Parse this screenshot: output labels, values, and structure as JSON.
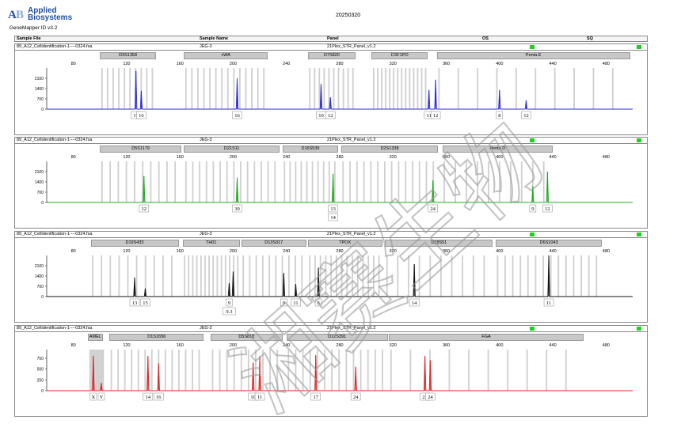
{
  "header": {
    "brand": "Applied Biosystems",
    "brand_line1": "Applied",
    "brand_line2": "Biosystems",
    "software": "GeneMapper ID v3.2",
    "date": "20250320"
  },
  "columns": {
    "sample_file": "Sample File",
    "sample_name": "Sample Name",
    "panel": "Panel",
    "os": "OS",
    "sq": "SQ"
  },
  "watermark": "湘赛生物",
  "colors": {
    "blue": "#2b2bd6",
    "green": "#1fa81f",
    "black": "#111111",
    "red": "#e02020",
    "ladder": "#cfcfcf",
    "ok": "#1fd01f"
  },
  "chart_data": [
    {
      "type": "electropherogram",
      "sample_file": "89_A12_Cellidentification-1----0324.fsa",
      "sample_name": "JEG-3",
      "panel": "21Plex_STR_Panel_v1.2",
      "dye": "blue",
      "x_ticks": [
        80,
        120,
        160,
        200,
        240,
        280,
        320,
        360,
        400,
        440,
        480
      ],
      "y_ticks": [
        0,
        700,
        1400,
        2100
      ],
      "ylim": [
        0,
        2800
      ],
      "loci": [
        {
          "name": "D3S1358",
          "start": 100,
          "end": 142
        },
        {
          "name": "vWA",
          "start": 163,
          "end": 226
        },
        {
          "name": "D7S820",
          "start": 256,
          "end": 292
        },
        {
          "name": "CSF1PO",
          "start": 304,
          "end": 346
        },
        {
          "name": "Penta E",
          "start": 353,
          "end": 498
        }
      ],
      "peaks": [
        {
          "size": 127,
          "height": 2600,
          "labels": [
            "15"
          ]
        },
        {
          "size": 131,
          "height": 1250,
          "labels": [
            "16"
          ]
        },
        {
          "size": 203,
          "height": 2100,
          "labels": [
            "16"
          ]
        },
        {
          "size": 266,
          "height": 1700,
          "labels": [
            "10"
          ]
        },
        {
          "size": 273,
          "height": 800,
          "labels": [
            "12"
          ]
        },
        {
          "size": 347,
          "height": 1300,
          "labels": [
            "11"
          ]
        },
        {
          "size": 352,
          "height": 2000,
          "labels": [
            "12"
          ]
        },
        {
          "size": 400,
          "height": 1300,
          "labels": [
            "8"
          ]
        },
        {
          "size": 420,
          "height": 600,
          "labels": [
            "12"
          ]
        }
      ]
    },
    {
      "type": "electropherogram",
      "sample_file": "89_A12_Cellidentification-1----0324.fsa",
      "sample_name": "JEG-3",
      "panel": "21Plex_STR_Panel_v1.2",
      "dye": "green",
      "x_ticks": [
        80,
        120,
        160,
        200,
        240,
        280,
        320,
        360,
        400,
        440,
        480
      ],
      "y_ticks": [
        0,
        700,
        1400,
        2100
      ],
      "ylim": [
        0,
        2800
      ],
      "loci": [
        {
          "name": "D5S1179",
          "start": 100,
          "end": 161
        },
        {
          "name": "D21S11",
          "start": 163,
          "end": 235
        },
        {
          "name": "D16S539",
          "start": 237,
          "end": 279
        },
        {
          "name": "D2S1338",
          "start": 281,
          "end": 354
        },
        {
          "name": "Penta D",
          "start": 357,
          "end": 440
        }
      ],
      "peaks": [
        {
          "size": 133,
          "height": 1800,
          "labels": [
            "12"
          ]
        },
        {
          "size": 203,
          "height": 1700,
          "labels": [
            "30"
          ]
        },
        {
          "size": 275,
          "height": 1950,
          "labels": [
            "13",
            "14"
          ]
        },
        {
          "size": 350,
          "height": 1500,
          "labels": [
            "24"
          ]
        },
        {
          "size": 425,
          "height": 1100,
          "labels": [
            "9"
          ]
        },
        {
          "size": 436,
          "height": 2100,
          "labels": [
            "12"
          ]
        }
      ]
    },
    {
      "type": "electropherogram",
      "sample_file": "89_A12_Cellidentification-1----0324.fsa",
      "sample_name": "JEG-3",
      "panel": "21Plex_STR_Panel_v1.2",
      "dye": "black",
      "x_ticks": [
        80,
        120,
        160,
        200,
        240,
        280,
        320,
        360,
        400,
        440,
        480
      ],
      "y_ticks": [
        0,
        700,
        1400,
        2100
      ],
      "ylim": [
        0,
        2800
      ],
      "loci": [
        {
          "name": "D19S433",
          "start": 93,
          "end": 159
        },
        {
          "name": "TH01",
          "start": 162,
          "end": 205
        },
        {
          "name": "D13S317",
          "start": 206,
          "end": 255
        },
        {
          "name": "TPOX",
          "start": 256,
          "end": 312
        },
        {
          "name": "D18S51",
          "start": 314,
          "end": 395
        },
        {
          "name": "D6S1043",
          "start": 397,
          "end": 477
        }
      ],
      "peaks": [
        {
          "size": 126,
          "height": 1300,
          "labels": [
            "13"
          ]
        },
        {
          "size": 134,
          "height": 550,
          "labels": [
            "15"
          ]
        },
        {
          "size": 197,
          "height": 900,
          "labels": [
            "9",
            "9.3"
          ]
        },
        {
          "size": 200,
          "height": 1700,
          "labels": []
        },
        {
          "size": 238,
          "height": 1600,
          "labels": [
            "9"
          ]
        },
        {
          "size": 247,
          "height": 850,
          "labels": [
            "11"
          ]
        },
        {
          "size": 264,
          "height": 1950,
          "labels": [
            "8"
          ]
        },
        {
          "size": 336,
          "height": 2200,
          "labels": [
            "14"
          ]
        },
        {
          "size": 437,
          "height": 2800,
          "labels": [
            "11"
          ]
        }
      ]
    },
    {
      "type": "electropherogram",
      "sample_file": "89_A12_Cellidentification-1----0324.fsa",
      "sample_name": "JEG-3",
      "panel": "21Plex_STR_Panel_v1.2",
      "dye": "red",
      "x_ticks": [
        80,
        120,
        160,
        200,
        240,
        280,
        320,
        360,
        400,
        440,
        480
      ],
      "y_ticks": [
        0,
        250,
        500,
        750
      ],
      "ylim": [
        0,
        950
      ],
      "loci": [
        {
          "name": "AMEL",
          "start": 91,
          "end": 102
        },
        {
          "name": "D1S1656",
          "start": 107,
          "end": 178
        },
        {
          "name": "D5S818",
          "start": 183,
          "end": 237
        },
        {
          "name": "D12S391",
          "start": 240,
          "end": 316
        },
        {
          "name": "FGA",
          "start": 317,
          "end": 463
        }
      ],
      "peaks": [
        {
          "size": 95,
          "height": 800,
          "labels": [
            "X"
          ]
        },
        {
          "size": 101,
          "height": 180,
          "labels": [
            "Y"
          ]
        },
        {
          "size": 136,
          "height": 800,
          "labels": [
            "14"
          ]
        },
        {
          "size": 144,
          "height": 630,
          "labels": [
            "16"
          ]
        },
        {
          "size": 215,
          "height": 650,
          "labels": [
            "10"
          ]
        },
        {
          "size": 220,
          "height": 800,
          "labels": [
            "11"
          ]
        },
        {
          "size": 262,
          "height": 820,
          "labels": [
            "17"
          ]
        },
        {
          "size": 292,
          "height": 550,
          "labels": [
            "24"
          ]
        },
        {
          "size": 344,
          "height": 800,
          "labels": [
            "23"
          ]
        },
        {
          "size": 348,
          "height": 700,
          "labels": [
            "24"
          ]
        }
      ]
    }
  ]
}
